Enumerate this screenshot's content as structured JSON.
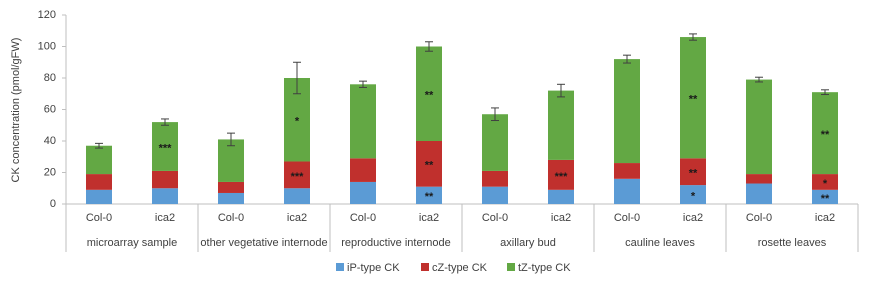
{
  "chart_data": {
    "type": "bar",
    "stacked": true,
    "y_label": "CK concentration (pmol/gFW)",
    "categories": [
      "Col-0",
      "ica2",
      "Col-0",
      "ica2",
      "Col-0",
      "ica2",
      "Col-0",
      "ica2",
      "Col-0",
      "ica2",
      "Col-0",
      "ica2"
    ],
    "groups": [
      "microarray sample",
      "other vegetative internode",
      "reproductive internode",
      "axillary bud",
      "cauline leaves",
      "rosette leaves"
    ],
    "series": [
      {
        "name": "iP-type CK",
        "color": "#5b9bd5",
        "values": [
          9,
          10,
          7,
          10,
          14,
          11,
          11,
          9,
          16,
          12,
          13,
          9
        ],
        "annotations": [
          null,
          null,
          null,
          null,
          null,
          "**",
          null,
          null,
          null,
          "*",
          null,
          "**"
        ]
      },
      {
        "name": "cZ-type CK",
        "color": "#c0302d",
        "values": [
          10,
          11,
          7,
          17,
          15,
          29,
          10,
          19,
          10,
          17,
          6,
          10
        ],
        "annotations": [
          null,
          null,
          null,
          "***",
          null,
          "**",
          null,
          "***",
          null,
          "**",
          null,
          "*"
        ]
      },
      {
        "name": "tZ-type CK",
        "color": "#63a844",
        "values": [
          18,
          31,
          27,
          53,
          47,
          60,
          36,
          44,
          66,
          77,
          60,
          52
        ],
        "annotations": [
          null,
          "***",
          null,
          "*",
          null,
          "**",
          null,
          null,
          null,
          "**",
          null,
          "**"
        ]
      }
    ],
    "errors": [
      1.5,
      2,
      4,
      10,
      2,
      3,
      4,
      4,
      2.5,
      2,
      1.5,
      1.5
    ],
    "ylim": [
      0,
      120
    ],
    "yticks": [
      0,
      20,
      40,
      60,
      80,
      100,
      120
    ],
    "grid": false,
    "legend": "bottom"
  }
}
